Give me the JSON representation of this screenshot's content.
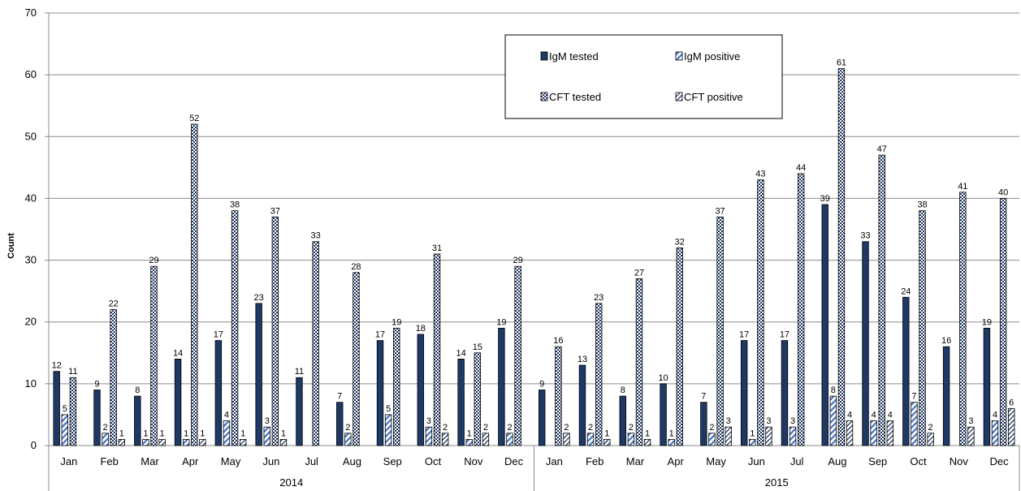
{
  "chart_data": {
    "type": "bar",
    "title": "",
    "xlabel": "",
    "ylabel": "Count",
    "ylim": [
      0,
      70
    ],
    "yticks": [
      0,
      10,
      20,
      30,
      40,
      50,
      60,
      70
    ],
    "grid": true,
    "legend_position": "top-right",
    "groups": [
      {
        "label": "2014",
        "months": [
          "Jan",
          "Feb",
          "Mar",
          "Apr",
          "May",
          "Jun",
          "Jul",
          "Aug",
          "Sep",
          "Oct",
          "Nov",
          "Dec"
        ]
      },
      {
        "label": "2015",
        "months": [
          "Jan",
          "Feb",
          "Mar",
          "Apr",
          "May",
          "Jun",
          "Jul",
          "Aug",
          "Sep",
          "Oct",
          "Nov",
          "Dec"
        ]
      }
    ],
    "series": [
      {
        "name": "IgM tested",
        "style": "solid",
        "color": "#1f3864",
        "values": [
          12,
          9,
          8,
          14,
          17,
          23,
          11,
          7,
          17,
          18,
          14,
          19,
          9,
          13,
          8,
          10,
          7,
          17,
          17,
          39,
          33,
          24,
          16,
          19
        ]
      },
      {
        "name": "IgM positive",
        "style": "stripes",
        "color": "#4472c4",
        "values": [
          5,
          2,
          1,
          1,
          4,
          3,
          null,
          2,
          5,
          3,
          1,
          2,
          null,
          2,
          2,
          1,
          2,
          1,
          3,
          8,
          4,
          7,
          null,
          4
        ]
      },
      {
        "name": "CFT tested",
        "style": "checker",
        "color": "#1f3864",
        "values": [
          11,
          22,
          29,
          52,
          38,
          37,
          33,
          28,
          19,
          31,
          15,
          29,
          16,
          23,
          27,
          32,
          37,
          43,
          44,
          61,
          47,
          38,
          41,
          40
        ]
      },
      {
        "name": "CFT positive",
        "style": "diagonal",
        "color": "#1f3864",
        "values": [
          null,
          1,
          1,
          1,
          1,
          1,
          null,
          null,
          null,
          2,
          2,
          null,
          2,
          1,
          1,
          null,
          3,
          3,
          null,
          4,
          4,
          2,
          3,
          6
        ]
      }
    ]
  }
}
